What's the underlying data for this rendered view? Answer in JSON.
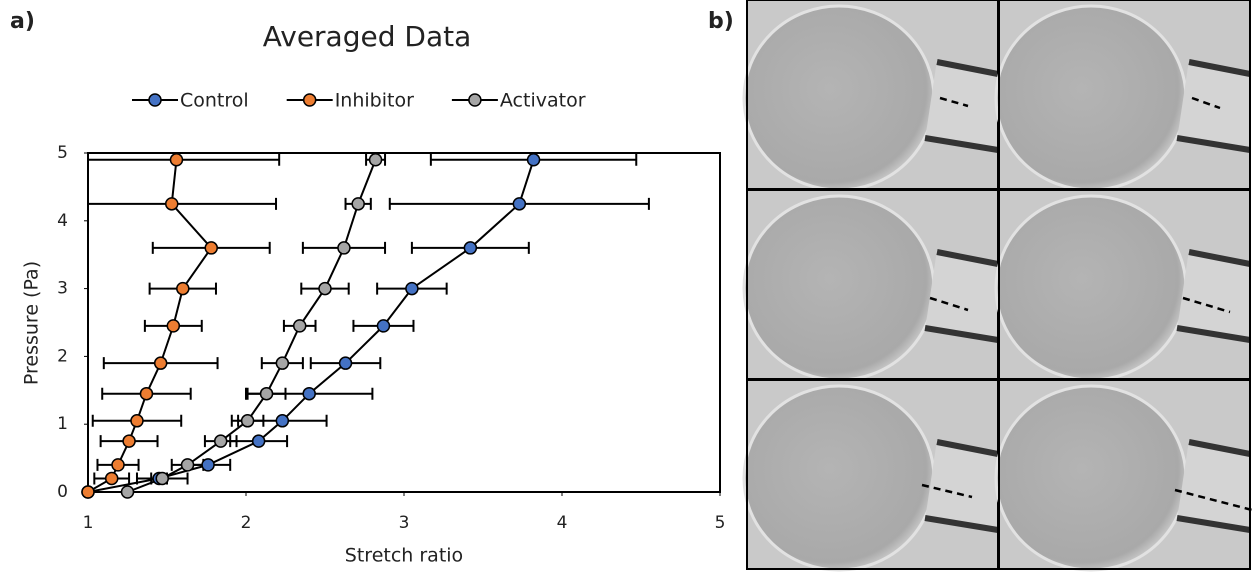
{
  "panel_labels": [
    "a)",
    "b)"
  ],
  "chart_data": {
    "type": "scatter",
    "title": "Averaged Data",
    "x_label": "Stretch ratio",
    "y_label": "Pressure (Pa)",
    "xlim": [
      1,
      5
    ],
    "ylim": [
      0,
      5
    ],
    "xticks": [
      1,
      2,
      3,
      4,
      5
    ],
    "yticks": [
      0,
      1,
      2,
      3,
      4,
      5
    ],
    "legend": "top",
    "series": [
      {
        "name": "Control",
        "color": "#4472c4",
        "x": [
          1.0,
          1.45,
          1.76,
          2.08,
          2.23,
          2.4,
          2.63,
          2.87,
          3.05,
          3.42,
          3.73,
          3.82
        ],
        "y": [
          0,
          0.2,
          0.4,
          0.75,
          1.05,
          1.45,
          1.9,
          2.45,
          3.0,
          3.6,
          4.25,
          4.9
        ],
        "xerr": [
          0,
          0.05,
          0.14,
          0.18,
          0.28,
          0.4,
          0.22,
          0.19,
          0.22,
          0.37,
          0.82,
          0.65
        ]
      },
      {
        "name": "Inhibitor",
        "color": "#ed7d31",
        "x": [
          1.0,
          1.15,
          1.19,
          1.26,
          1.31,
          1.37,
          1.46,
          1.54,
          1.6,
          1.78,
          1.53,
          1.56
        ],
        "y": [
          0,
          0.2,
          0.4,
          0.75,
          1.05,
          1.45,
          1.9,
          2.45,
          3.0,
          3.6,
          4.25,
          4.9
        ],
        "xerr": [
          0,
          0.11,
          0.13,
          0.18,
          0.28,
          0.28,
          0.36,
          0.18,
          0.21,
          0.37,
          0.66,
          0.65
        ]
      },
      {
        "name": "Activator",
        "color": "#a5a5a5",
        "x": [
          1.25,
          1.47,
          1.63,
          1.84,
          2.01,
          2.13,
          2.23,
          2.34,
          2.5,
          2.62,
          2.71,
          2.82
        ],
        "y": [
          0,
          0.2,
          0.4,
          0.75,
          1.05,
          1.45,
          1.9,
          2.45,
          3.0,
          3.6,
          4.25,
          4.9
        ],
        "xerr": [
          0,
          0.16,
          0.1,
          0.1,
          0.1,
          0.12,
          0.13,
          0.1,
          0.15,
          0.26,
          0.08,
          0.06
        ]
      }
    ]
  }
}
